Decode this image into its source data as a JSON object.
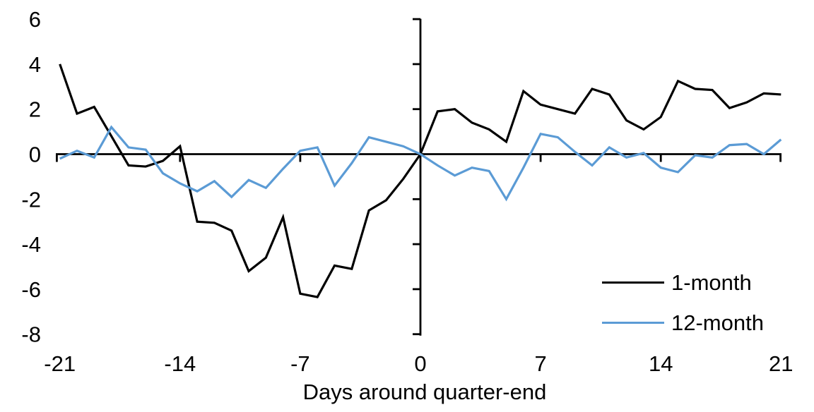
{
  "chart_data": {
    "type": "line",
    "title": "",
    "xlabel": "Days around quarter-end",
    "ylabel": "",
    "x_range": [
      -21,
      21
    ],
    "x_step": 1,
    "x_ticks": [
      -21,
      -14,
      -7,
      0,
      7,
      14,
      21
    ],
    "y_ticks": [
      6,
      4,
      2,
      0,
      -2,
      -4,
      -6,
      -8
    ],
    "xlim": [
      -21,
      21
    ],
    "ylim": [
      -8,
      6
    ],
    "grid": false,
    "legend_position": "inside-bottom-right",
    "background_color": "#ffffff",
    "axis_color": "#000000",
    "series": [
      {
        "name": "1-month",
        "color": "#000000",
        "values": [
          4.0,
          1.8,
          2.1,
          0.8,
          -0.5,
          -0.55,
          -0.3,
          0.35,
          -3.0,
          -3.05,
          -3.4,
          -5.2,
          -4.6,
          -2.8,
          -6.2,
          -6.35,
          -4.95,
          -5.1,
          -2.5,
          -2.05,
          -1.1,
          0.0,
          1.9,
          2.0,
          1.4,
          1.1,
          0.55,
          2.8,
          2.2,
          2.0,
          1.8,
          2.9,
          2.65,
          1.5,
          1.1,
          1.65,
          3.25,
          2.9,
          2.85,
          2.05,
          2.3,
          2.7,
          2.65
        ]
      },
      {
        "name": "12-month",
        "color": "#5b9bd5",
        "values": [
          -0.2,
          0.15,
          -0.15,
          1.2,
          0.3,
          0.2,
          -0.85,
          -1.3,
          -1.65,
          -1.2,
          -1.9,
          -1.15,
          -1.5,
          -0.65,
          0.15,
          0.3,
          -1.4,
          -0.4,
          0.75,
          0.55,
          0.35,
          0.0,
          -0.5,
          -0.95,
          -0.6,
          -0.75,
          -2.0,
          -0.6,
          0.9,
          0.75,
          0.1,
          -0.5,
          0.3,
          -0.15,
          0.05,
          -0.6,
          -0.8,
          -0.05,
          -0.15,
          0.4,
          0.45,
          0.0,
          0.65
        ]
      }
    ]
  }
}
